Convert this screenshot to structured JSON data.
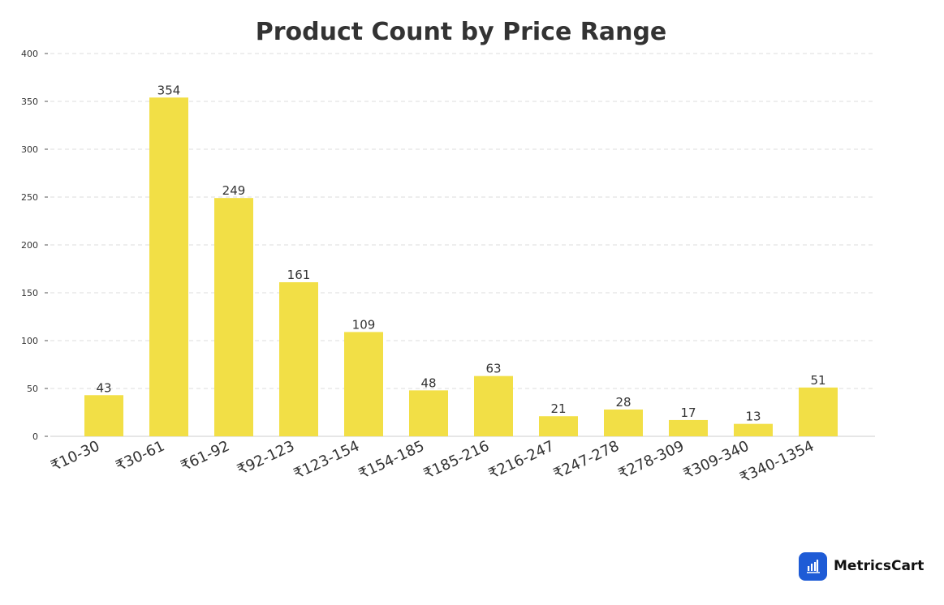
{
  "chart_data": {
    "type": "bar",
    "title": "Product Count by Price Range",
    "xlabel": "",
    "ylabel": "",
    "categories": [
      "₹10-30",
      "₹30-61",
      "₹61-92",
      "₹92-123",
      "₹123-154",
      "₹154-185",
      "₹185-216",
      "₹216-247",
      "₹247-278",
      "₹278-309",
      "₹309-340",
      "₹340-1354"
    ],
    "values": [
      43,
      354,
      249,
      161,
      109,
      48,
      63,
      21,
      28,
      17,
      13,
      51
    ],
    "ylim": [
      0,
      400
    ],
    "yticks": [
      0,
      50,
      100,
      150,
      200,
      250,
      300,
      350,
      400
    ],
    "grid": true,
    "legend": "none",
    "colors": {
      "bar": "#f2df46",
      "text": "#333333",
      "grid": "#dddddd"
    }
  },
  "brand": {
    "name": "MetricsCart",
    "icon": "bar-chart-icon",
    "color": "#1e5bd6"
  }
}
